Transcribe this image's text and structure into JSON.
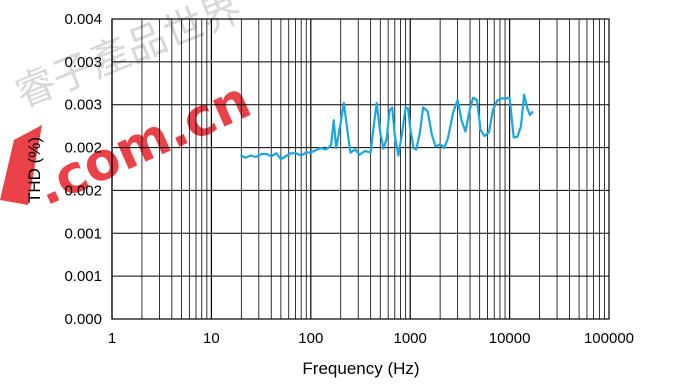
{
  "chart_data": {
    "type": "line",
    "xlabel": "Frequency (Hz)",
    "ylabel": "THD (%)",
    "x_scale": "log",
    "xlim": [
      1,
      100000
    ],
    "ylim": [
      0,
      0.004
    ],
    "grid": true,
    "x_tick_labels": [
      "1",
      "10",
      "100",
      "1000",
      "10000",
      "100000"
    ],
    "y_tick_labels": [
      "0.000",
      "0.001",
      "0.001",
      "0.002",
      "0.002",
      "0.003",
      "0.003",
      "0.004"
    ],
    "series": [
      {
        "color": "#1ba7e0",
        "x": [
          20,
          22,
          25,
          28,
          32,
          36,
          40,
          45,
          50,
          56,
          63,
          71,
          80,
          90,
          100,
          112,
          126,
          140,
          150,
          160,
          170,
          180,
          200,
          215,
          230,
          250,
          280,
          310,
          350,
          400,
          430,
          460,
          500,
          540,
          580,
          620,
          660,
          700,
          760,
          820,
          900,
          950,
          1000,
          1080,
          1150,
          1250,
          1350,
          1500,
          1650,
          1800,
          2000,
          2200,
          2400,
          2700,
          3000,
          3300,
          3600,
          4000,
          4300,
          4700,
          5100,
          5600,
          6200,
          6800,
          7500,
          8200,
          9000,
          10000,
          11000,
          12000,
          13000,
          14000,
          15000,
          16000,
          17000
        ],
        "y": [
          0.00218,
          0.00215,
          0.00218,
          0.00216,
          0.0022,
          0.0022,
          0.00217,
          0.00221,
          0.00213,
          0.00217,
          0.00221,
          0.00221,
          0.00218,
          0.00222,
          0.00222,
          0.00225,
          0.00228,
          0.00226,
          0.00228,
          0.00232,
          0.00265,
          0.00228,
          0.00262,
          0.00288,
          0.00258,
          0.00222,
          0.00226,
          0.00219,
          0.00224,
          0.00222,
          0.00258,
          0.00288,
          0.00248,
          0.00227,
          0.00241,
          0.00278,
          0.00282,
          0.00245,
          0.00218,
          0.00244,
          0.00282,
          0.00281,
          0.00255,
          0.00228,
          0.00226,
          0.00248,
          0.00282,
          0.00277,
          0.00246,
          0.0023,
          0.00233,
          0.00228,
          0.00241,
          0.00275,
          0.00292,
          0.00264,
          0.0025,
          0.00281,
          0.00295,
          0.00292,
          0.00252,
          0.00244,
          0.00249,
          0.00279,
          0.00291,
          0.00294,
          0.00294,
          0.00295,
          0.00242,
          0.00243,
          0.00257,
          0.00299,
          0.00282,
          0.00272,
          0.00276
        ]
      }
    ]
  },
  "watermark": {
    "cn_text": "睿子產品世界",
    "domain_text": ".com.cn",
    "color": "#e8202a",
    "gray": "#9a9a9a"
  }
}
